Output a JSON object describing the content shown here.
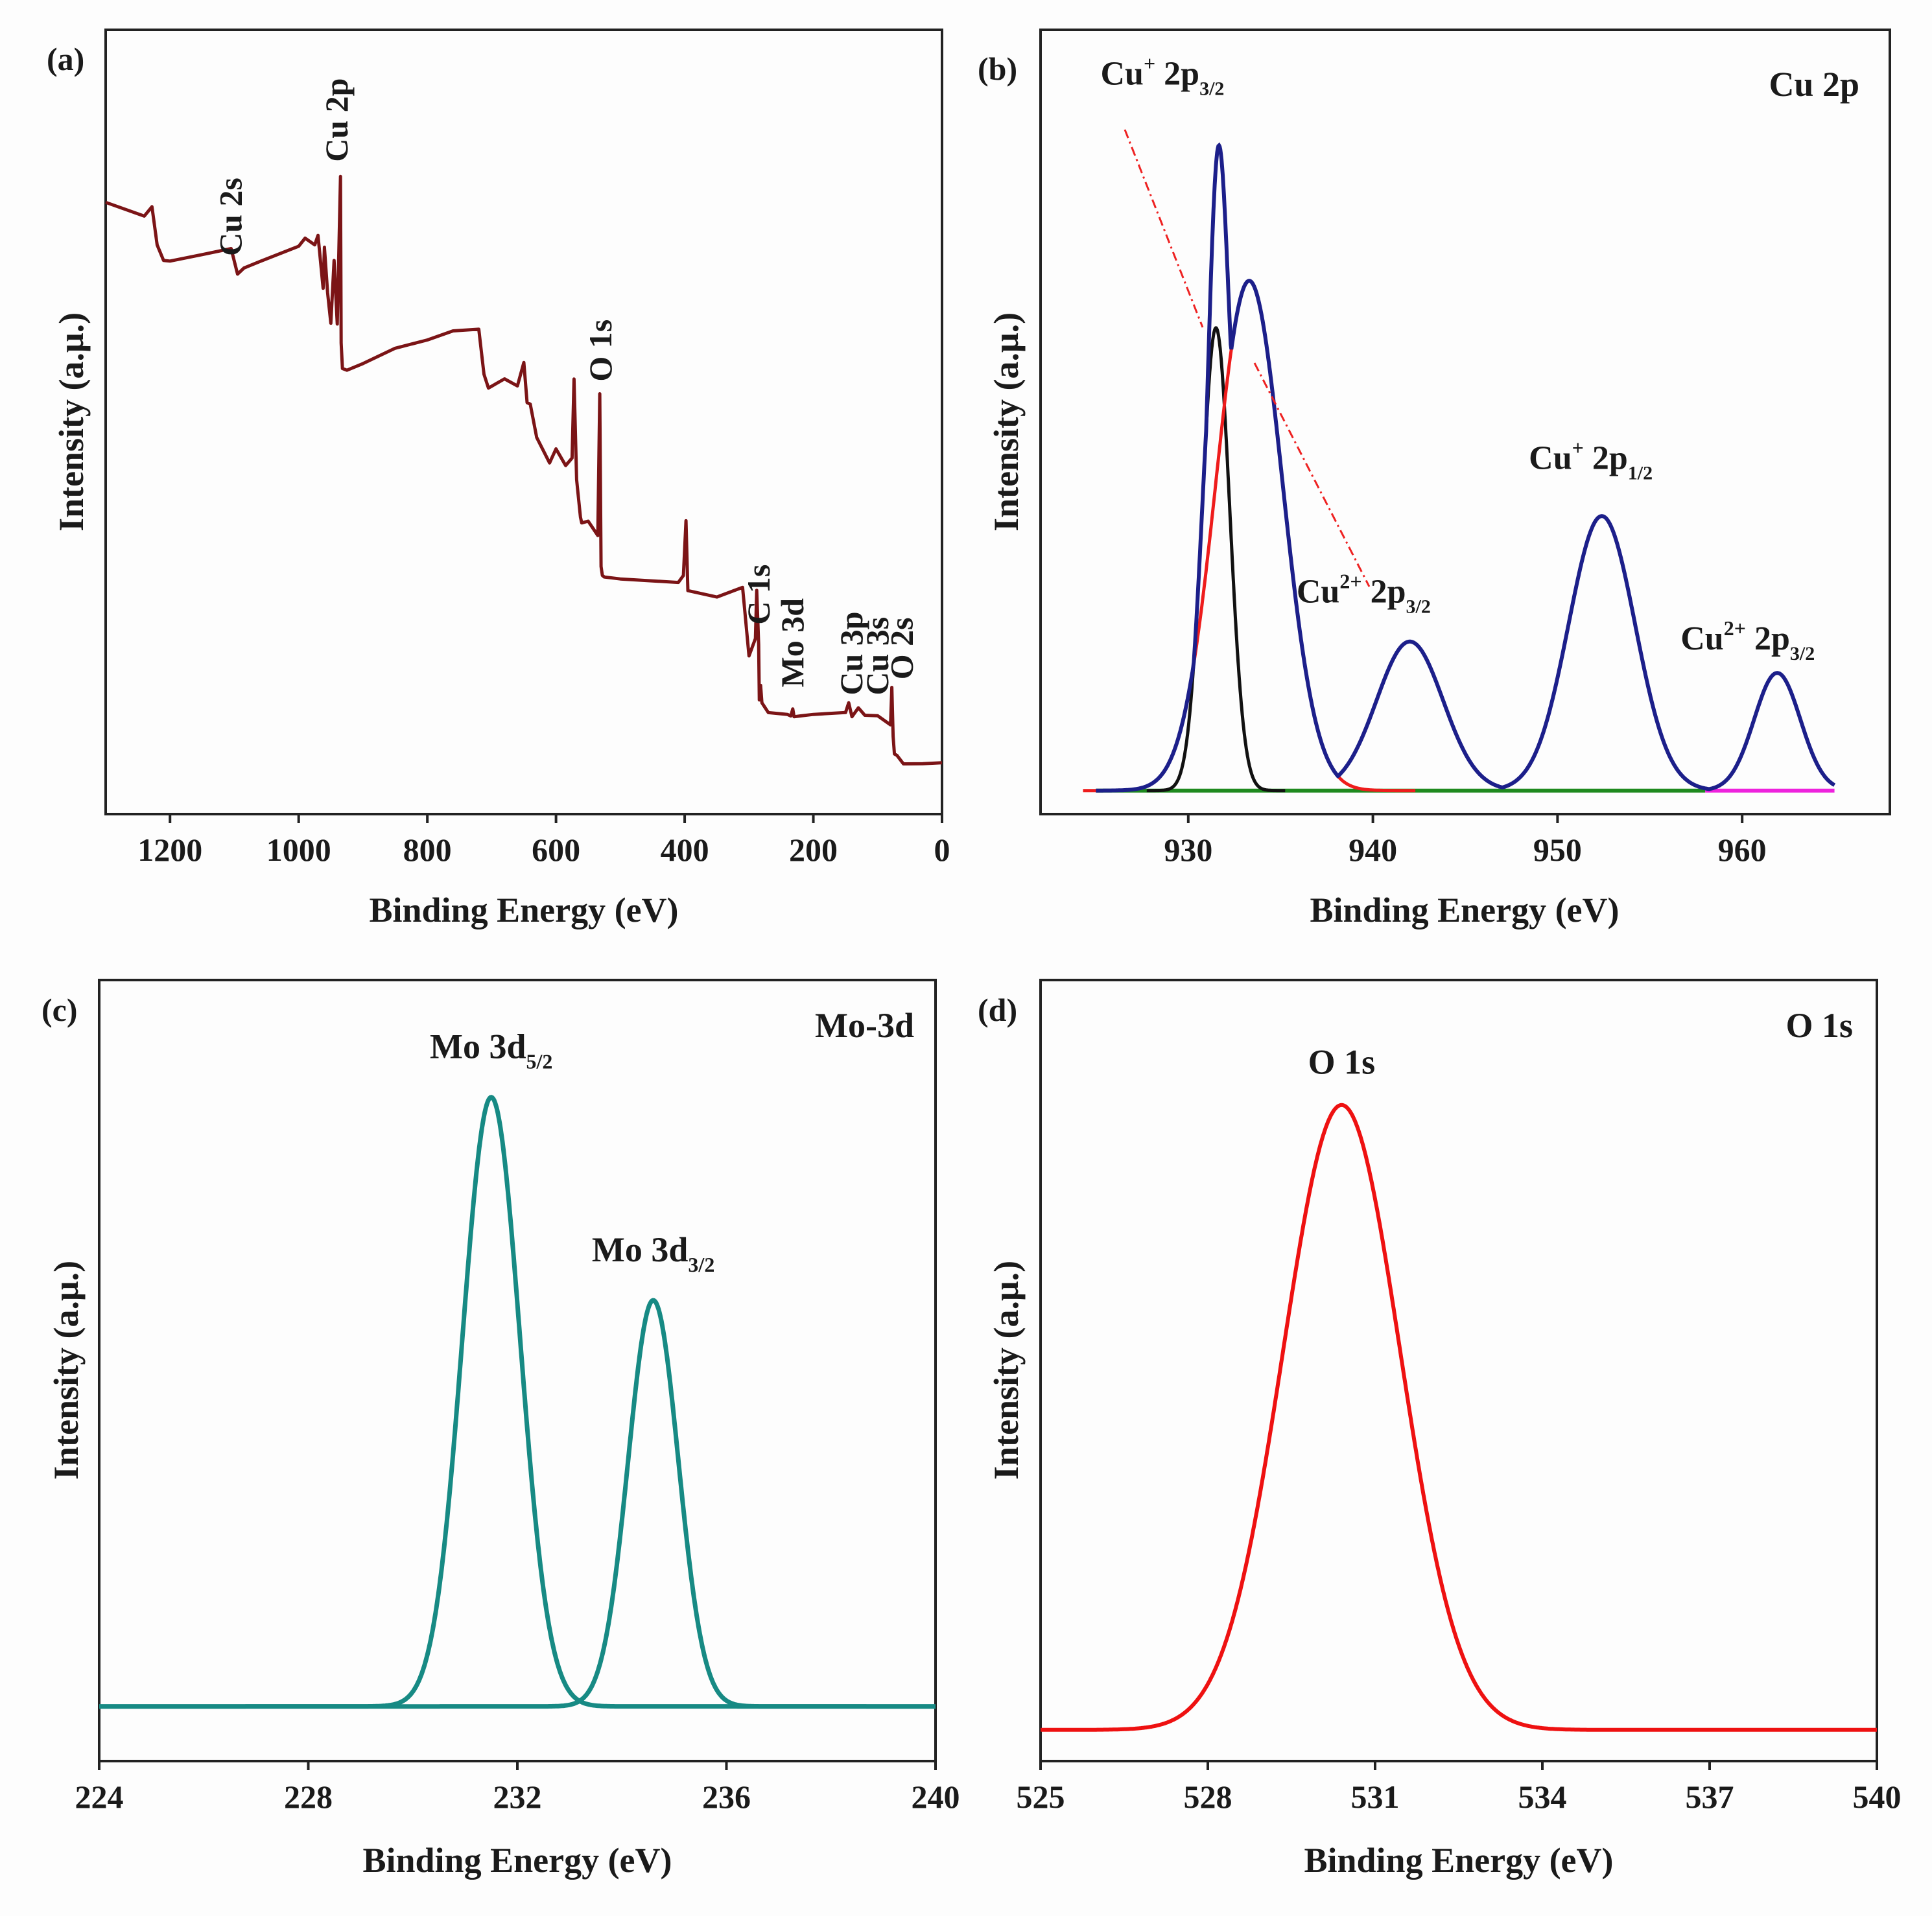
{
  "colors": {
    "survey": "#7b1416",
    "envelope": "#1c1f8a",
    "black": "#111111",
    "red": "#ee1c1c",
    "green": "#1f8a1f",
    "magenta": "#ee22dd",
    "teal": "#178a84",
    "o1s": "#ee1111",
    "title_blue": "#1f1fd6",
    "dashed": "#ee2222"
  },
  "chart_data": [
    {
      "type": "line",
      "panel_label": "(a)",
      "xlabel": "Binding Energy (eV)",
      "ylabel": "Intensity (a.μ.)",
      "xlim": [
        1300,
        0
      ],
      "xticks": [
        1200,
        1000,
        800,
        600,
        400,
        200,
        0
      ],
      "ylim": [
        0,
        100
      ],
      "series": [
        {
          "x": [
            1300,
            1240,
            1228,
            1220,
            1210,
            1200,
            1150,
            1105,
            1095,
            1085,
            1060,
            1000,
            990,
            975,
            970,
            962,
            960,
            955,
            950,
            945,
            940,
            935,
            934,
            932,
            925,
            900,
            850,
            800,
            760,
            720,
            712,
            705,
            680,
            660,
            650,
            645,
            640,
            630,
            610,
            600,
            585,
            575,
            572,
            568,
            562,
            560,
            550,
            535,
            532,
            530,
            528,
            525,
            500,
            450,
            410,
            402,
            398,
            395,
            350,
            310,
            300,
            290,
            288,
            285,
            284,
            282,
            280,
            270,
            240,
            235,
            232,
            230,
            220,
            200,
            150,
            145,
            140,
            130,
            120,
            100,
            80,
            78,
            76,
            74,
            70,
            60,
            30,
            0
          ],
          "y": [
            78,
            76,
            77,
            72,
            70,
            70,
            71,
            72,
            69,
            70,
            71,
            73,
            74,
            73,
            74,
            67,
            72,
            66,
            62,
            70,
            62,
            81,
            60,
            57,
            57,
            58,
            60,
            61,
            62,
            62,
            56,
            54,
            55,
            54,
            57,
            52,
            52,
            48,
            45,
            47,
            45,
            46,
            56,
            43,
            38,
            37,
            37,
            35,
            53,
            31,
            30,
            30,
            30,
            30,
            30,
            31,
            38,
            29,
            28,
            29,
            20,
            22,
            28,
            21,
            14,
            16,
            14,
            13,
            13,
            13,
            14,
            13,
            13,
            13,
            13,
            14,
            12,
            13,
            12,
            12,
            11,
            16,
            10,
            8,
            8,
            7,
            7,
            7
          ]
        }
      ],
      "annotations": [
        {
          "text": "Cu 2s",
          "x": 1105,
          "y": 70
        },
        {
          "text": "Cu 2p",
          "x": 940,
          "y": 82
        },
        {
          "text": "O 1s",
          "x": 530,
          "y": 54
        },
        {
          "text": "C 1s",
          "x": 284,
          "y": 23
        },
        {
          "text": "Mo 3d",
          "x": 232,
          "y": 15
        },
        {
          "text": "Cu 3p",
          "x": 140,
          "y": 14
        },
        {
          "text": "Cu 3s",
          "x": 100,
          "y": 14
        },
        {
          "text": "O 2s",
          "x": 62,
          "y": 16
        }
      ]
    },
    {
      "type": "line",
      "panel_label": "(b)",
      "title": "Cu 2p",
      "xlabel": "Binding Energy (eV)",
      "ylabel": "Intensity (a.μ.)",
      "xlim": [
        922,
        968
      ],
      "xticks": [
        930,
        940,
        950,
        960
      ],
      "ylim": [
        0,
        100
      ],
      "baseline": 3,
      "components": [
        {
          "color_key": "black",
          "center": 931.5,
          "height": 59,
          "sigma": 0.75
        },
        {
          "color_key": "red",
          "center": 933.3,
          "height": 65,
          "sigma": 1.8
        },
        {
          "color_key": "envelope",
          "center": 942.0,
          "height": 19,
          "sigma": 1.8
        },
        {
          "color_key": "envelope",
          "center": 952.4,
          "height": 35,
          "sigma": 1.8
        },
        {
          "color_key": "envelope",
          "center": 961.9,
          "height": 15,
          "sigma": 1.25
        }
      ],
      "envelope_extra": [
        {
          "center": 931.6,
          "height": 59,
          "sigma": 0.55
        }
      ],
      "baselines": [
        {
          "color_key": "green",
          "from": 925,
          "to": 958
        },
        {
          "color_key": "magenta",
          "from": 958,
          "to": 965
        }
      ],
      "labels": [
        {
          "text": "Cu",
          "sup": "+",
          "rest": " 2p",
          "sub": "3/2",
          "x": 928.6,
          "y": 93
        },
        {
          "text": "Cu",
          "sup": "2+",
          "rest": " 2p",
          "sub": "3/2",
          "x": 939.5,
          "y": 27
        },
        {
          "text": "Cu",
          "sup": "+",
          "rest": " 2p",
          "sub": "1/2",
          "x": 951.8,
          "y": 44
        },
        {
          "text": "Cu",
          "sup": "2+",
          "rest": " 2p",
          "sub": "3/2",
          "x": 960.3,
          "y": 21
        }
      ]
    },
    {
      "type": "line",
      "panel_label": "(c)",
      "title": "Mo-3d",
      "xlabel": "Binding Energy (eV)",
      "ylabel": "Intensity (a.μ.)",
      "xlim": [
        224,
        240
      ],
      "xticks": [
        224,
        228,
        232,
        236,
        240
      ],
      "ylim": [
        0,
        100
      ],
      "baseline": 7,
      "components": [
        {
          "color_key": "teal",
          "center": 231.5,
          "height": 78,
          "sigma": 0.55
        },
        {
          "color_key": "teal",
          "center": 234.6,
          "height": 52,
          "sigma": 0.48
        }
      ],
      "labels": [
        {
          "text": "Mo 3d",
          "sub": "5/2",
          "x": 231.5,
          "y": 90
        },
        {
          "text": "Mo 3d",
          "sub": "3/2",
          "x": 234.6,
          "y": 64
        }
      ]
    },
    {
      "type": "line",
      "panel_label": "(d)",
      "title": "O 1s",
      "xlabel": "Binding Energy (eV)",
      "ylabel": "Intensity (a.μ.)",
      "xlim": [
        525,
        540
      ],
      "xticks": [
        525,
        528,
        531,
        534,
        537,
        540
      ],
      "ylim": [
        0,
        100
      ],
      "baseline": 4,
      "components": [
        {
          "color_key": "o1s",
          "center": 530.4,
          "height": 80,
          "sigma": 1.05
        }
      ],
      "labels": [
        {
          "text": "O 1s",
          "x": 530.4,
          "y": 88
        }
      ]
    }
  ]
}
